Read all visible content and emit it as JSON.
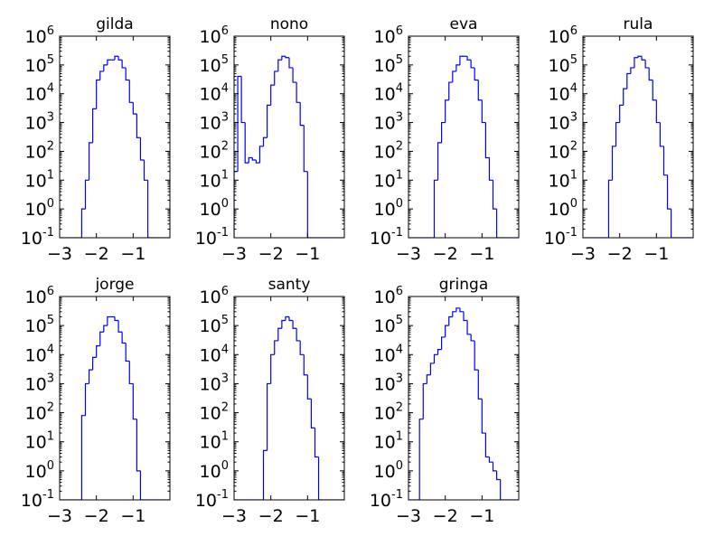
{
  "figure": {
    "line_color": "#0000ff",
    "axis_color": "#000000",
    "background": "#ffffff"
  },
  "chart_data": [
    {
      "type": "histogram-step",
      "title": "gilda",
      "xlim": [
        -3,
        0
      ],
      "ylim": [
        0.1,
        1000000
      ],
      "yscale": "log",
      "xticks": [
        -3,
        -2,
        -1
      ],
      "xtick_labels": [
        "−3",
        "−2",
        "−1"
      ],
      "ytick_exponents": [
        -1,
        0,
        1,
        2,
        3,
        4,
        5,
        6
      ],
      "bin_start": -3,
      "bin_width": 0.1,
      "values": [
        0,
        0,
        0,
        0,
        0,
        0,
        1,
        10,
        200,
        3000,
        30000,
        60000,
        100000,
        150000,
        150000,
        200000,
        150000,
        80000,
        30000,
        5000,
        2000,
        300,
        50,
        10,
        0.1,
        0,
        0,
        0,
        0,
        0
      ]
    },
    {
      "type": "histogram-step",
      "title": "nono",
      "xlim": [
        -3,
        0
      ],
      "ylim": [
        0.1,
        1000000
      ],
      "yscale": "log",
      "xticks": [
        -3,
        -2,
        -1
      ],
      "xtick_labels": [
        "−3",
        "−2",
        "−1"
      ],
      "ytick_exponents": [
        -1,
        0,
        1,
        2,
        3,
        4,
        5,
        6
      ],
      "bin_start": -3,
      "bin_width": 0.1,
      "values": [
        20,
        40000,
        1000,
        40,
        60,
        50,
        40,
        150,
        300,
        4000,
        20000,
        60000,
        150000,
        200000,
        180000,
        80000,
        25000,
        5000,
        800,
        20,
        0.1,
        0,
        0,
        0,
        0,
        0,
        0,
        0,
        0,
        0
      ]
    },
    {
      "type": "histogram-step",
      "title": "eva",
      "xlim": [
        -3,
        0
      ],
      "ylim": [
        0.1,
        1000000
      ],
      "yscale": "log",
      "xticks": [
        -3,
        -2,
        -1
      ],
      "xtick_labels": [
        "−3",
        "−2",
        "−1"
      ],
      "ytick_exponents": [
        -1,
        0,
        1,
        2,
        3,
        4,
        5,
        6
      ],
      "bin_start": -3,
      "bin_width": 0.1,
      "values": [
        0,
        0,
        0,
        0,
        0,
        0,
        0,
        10,
        200,
        1000,
        6000,
        25000,
        60000,
        100000,
        200000,
        200000,
        150000,
        80000,
        30000,
        6000,
        1000,
        60,
        10,
        1,
        0.1,
        0,
        0,
        0,
        0,
        0
      ]
    },
    {
      "type": "histogram-step",
      "title": "rula",
      "xlim": [
        -3,
        0
      ],
      "ylim": [
        0.1,
        1000000
      ],
      "yscale": "log",
      "xticks": [
        -3,
        -2,
        -1
      ],
      "xtick_labels": [
        "−3",
        "−2",
        "−1"
      ],
      "ytick_exponents": [
        -1,
        0,
        1,
        2,
        3,
        4,
        5,
        6
      ],
      "bin_start": -3,
      "bin_width": 0.1,
      "values": [
        0,
        0,
        0,
        0,
        0,
        0,
        0,
        10,
        150,
        1000,
        4000,
        15000,
        50000,
        80000,
        180000,
        200000,
        150000,
        80000,
        30000,
        6000,
        1000,
        150,
        15,
        1,
        0.1,
        0,
        0,
        0,
        0,
        0
      ]
    },
    {
      "type": "histogram-step",
      "title": "jorge",
      "xlim": [
        -3,
        0
      ],
      "ylim": [
        0.1,
        1000000
      ],
      "yscale": "log",
      "xticks": [
        -3,
        -2,
        -1
      ],
      "xtick_labels": [
        "−3",
        "−2",
        "−1"
      ],
      "ytick_exponents": [
        -1,
        0,
        1,
        2,
        3,
        4,
        5,
        6
      ],
      "bin_start": -3,
      "bin_width": 0.1,
      "values": [
        0,
        0,
        0,
        0,
        0,
        0,
        80,
        1000,
        3000,
        8000,
        20000,
        60000,
        100000,
        200000,
        200000,
        150000,
        60000,
        25000,
        6000,
        1000,
        60,
        1,
        0.1,
        0,
        0,
        0,
        0,
        0,
        0,
        0
      ]
    },
    {
      "type": "histogram-step",
      "title": "santy",
      "xlim": [
        -3,
        0
      ],
      "ylim": [
        0.1,
        1000000
      ],
      "yscale": "log",
      "xticks": [
        -3,
        -2,
        -1
      ],
      "xtick_labels": [
        "−3",
        "−2",
        "−1"
      ],
      "ytick_exponents": [
        -1,
        0,
        1,
        2,
        3,
        4,
        5,
        6
      ],
      "bin_start": -3,
      "bin_width": 0.1,
      "values": [
        0,
        0,
        0,
        0,
        0,
        0,
        0,
        0,
        5,
        1000,
        10000,
        30000,
        80000,
        150000,
        200000,
        150000,
        80000,
        30000,
        10000,
        2000,
        300,
        30,
        3,
        0.1,
        0,
        0,
        0,
        0,
        0,
        0
      ]
    },
    {
      "type": "histogram-step",
      "title": "gringa",
      "xlim": [
        -3,
        0
      ],
      "ylim": [
        0.1,
        1000000
      ],
      "yscale": "log",
      "xticks": [
        -3,
        -2,
        -1
      ],
      "xtick_labels": [
        "−3",
        "−2",
        "−1"
      ],
      "ytick_exponents": [
        -1,
        0,
        1,
        2,
        3,
        4,
        5,
        6
      ],
      "bin_start": -3,
      "bin_width": 0.1,
      "values": [
        0,
        0,
        0,
        60,
        1000,
        2000,
        5000,
        10000,
        15000,
        40000,
        100000,
        200000,
        300000,
        400000,
        300000,
        150000,
        50000,
        30000,
        3000,
        300,
        20,
        3,
        2,
        1,
        0.5,
        0,
        0,
        0,
        0,
        0
      ]
    }
  ]
}
